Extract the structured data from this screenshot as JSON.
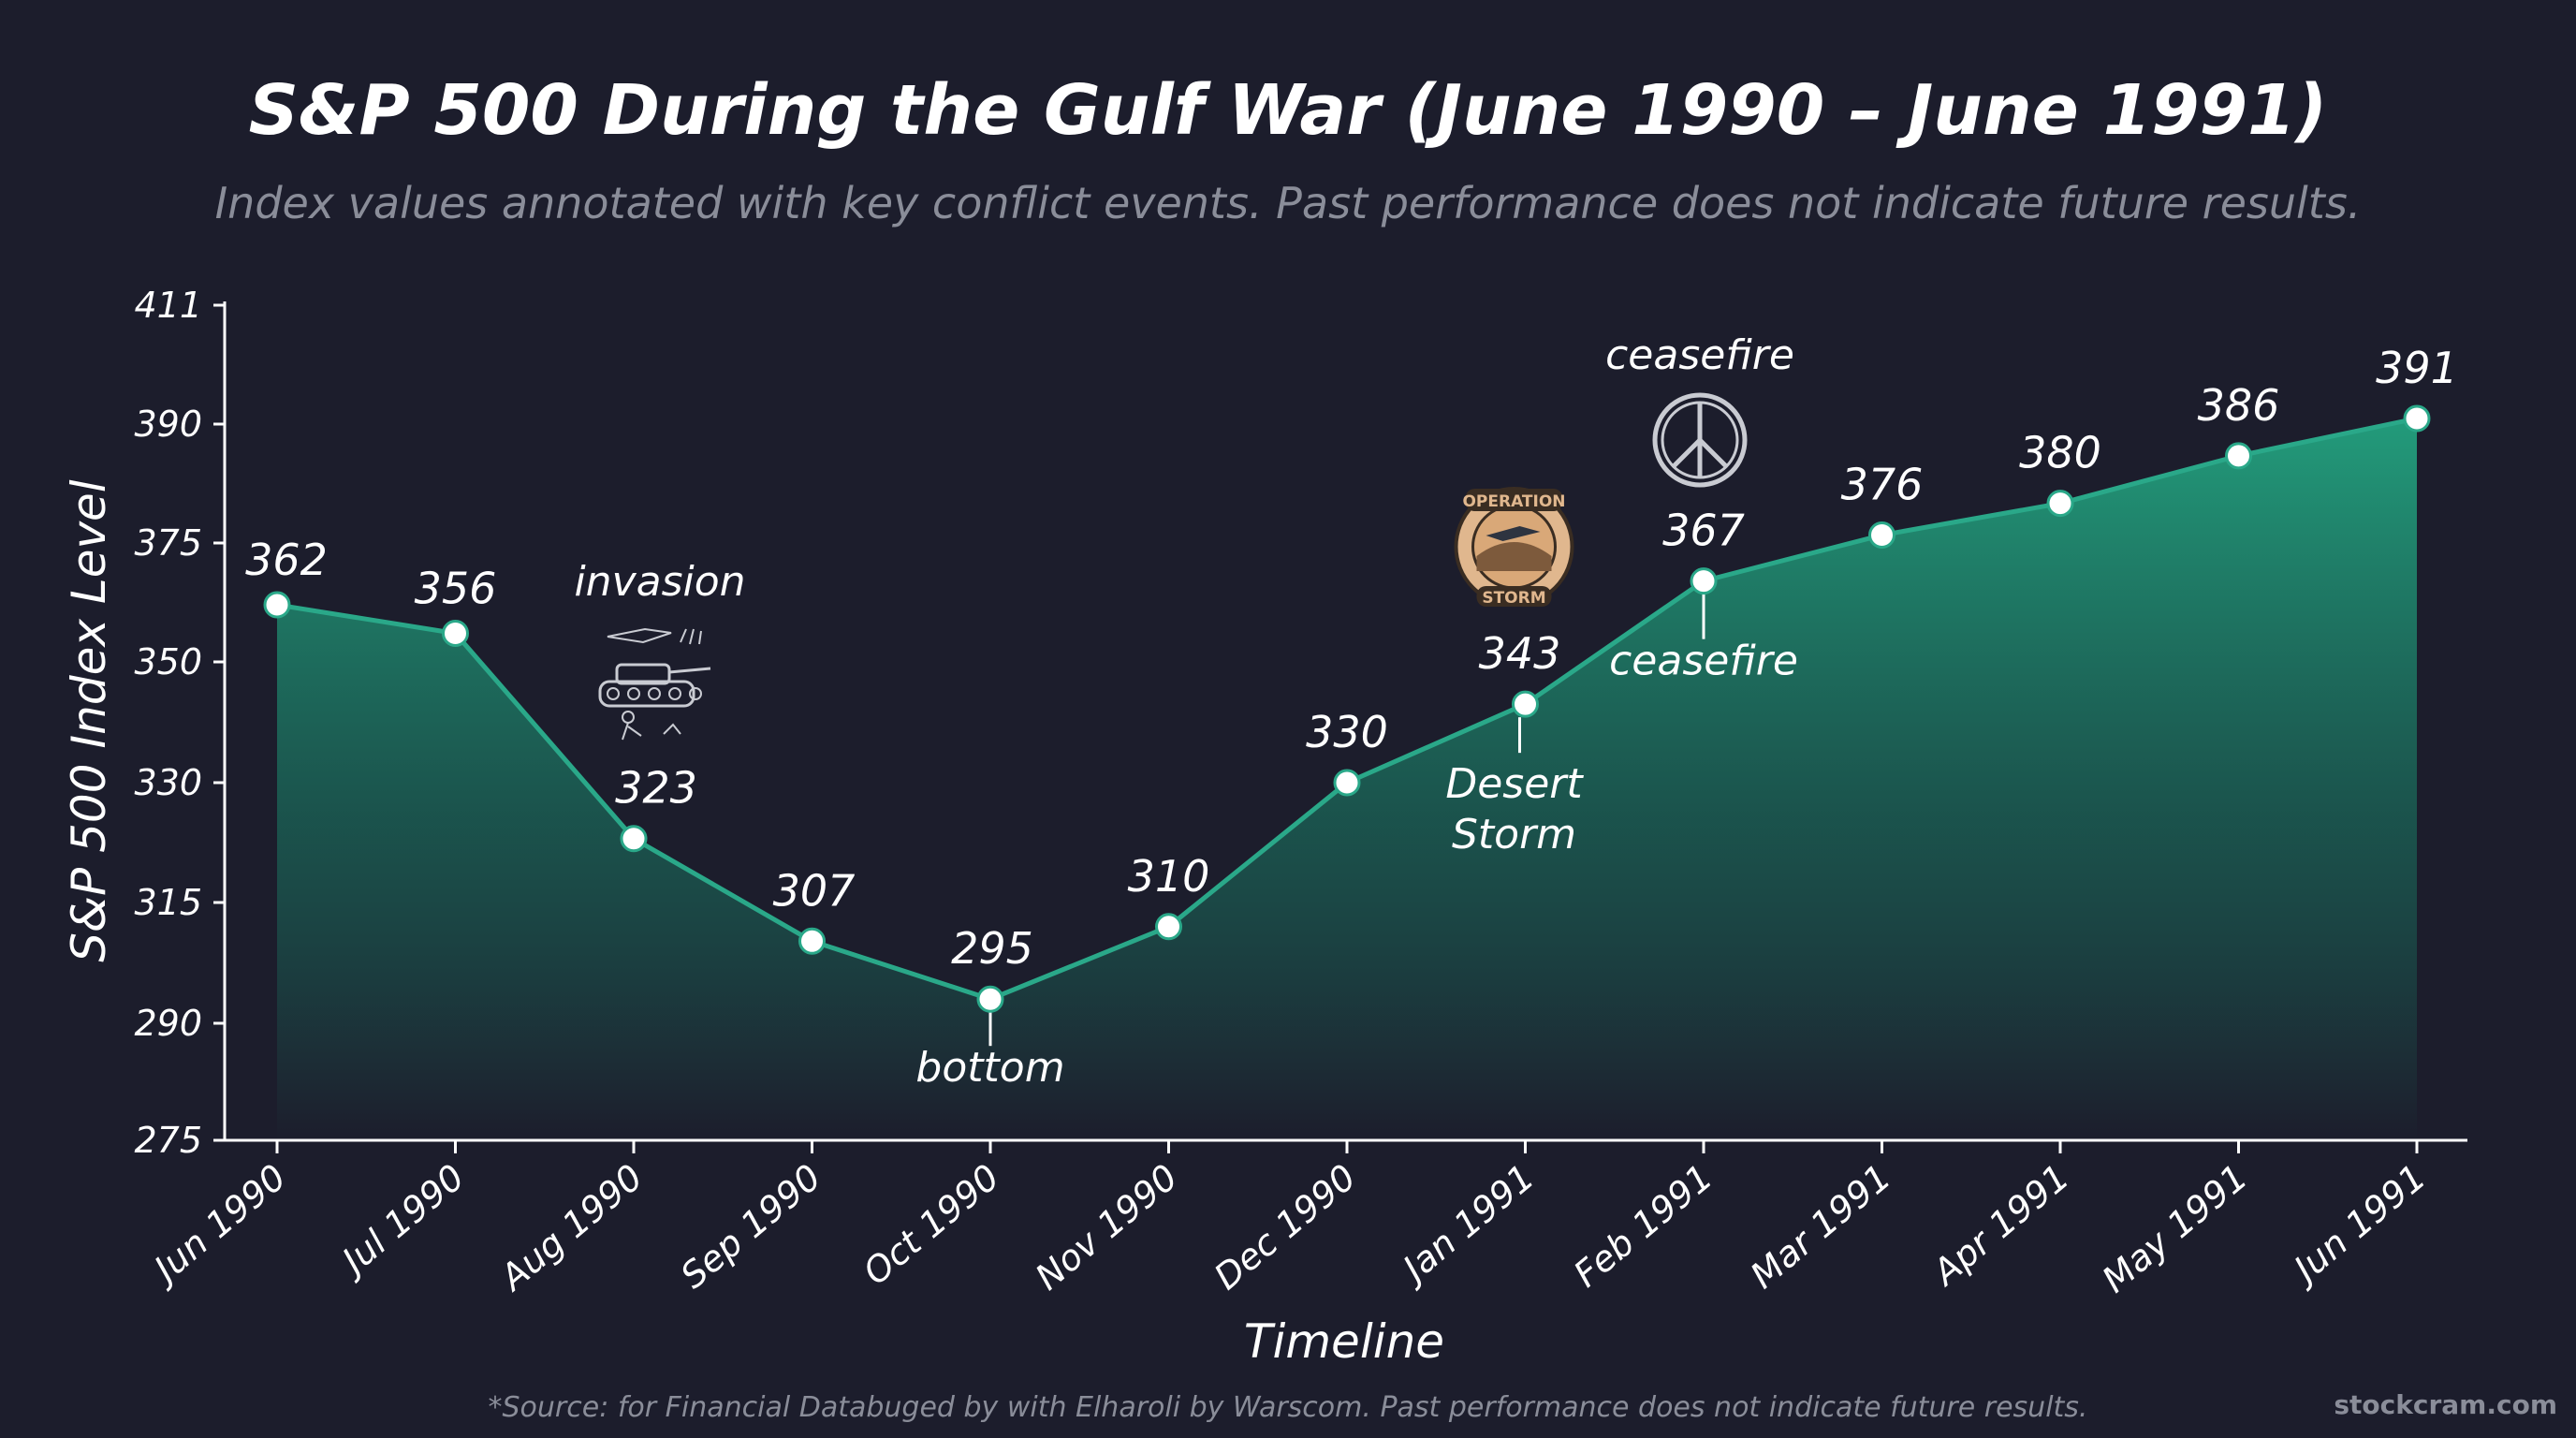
{
  "chart_data": {
    "type": "area",
    "title": "S&P 500 During the Gulf War (June 1990 – June 1991)",
    "subtitle": "Index values annotated with key conflict events. Past performance does not indicate future results.",
    "xlabel": "Timeline",
    "ylabel": "S&P 500 Index Level",
    "categories": [
      "Jun 1990",
      "Jul 1990",
      "Aug 1990",
      "Sep 1990",
      "Oct 1990",
      "Nov 1990",
      "Dec 1990",
      "Jan 1991",
      "Feb 1991",
      "Mar 1991",
      "Apr 1991",
      "May 1991",
      "Jun 1991"
    ],
    "values": [
      362,
      356,
      323,
      307,
      295,
      310,
      330,
      343,
      367,
      376,
      380,
      386,
      391
    ],
    "y_ticks": [
      275,
      290,
      315,
      330,
      350,
      375,
      390,
      411
    ],
    "ylim": [
      275,
      411
    ],
    "grid": false,
    "line_color": "#2aa889",
    "fill_color_top": "#23a27f",
    "fill_color_bottom": "#1c1d2c",
    "annotations": [
      {
        "category": "Aug 1990",
        "label": "invasion",
        "icon": "tank-soldier-icon"
      },
      {
        "category": "Oct 1990",
        "label": "bottom"
      },
      {
        "category": "Jan 1991",
        "label": "Desert Storm",
        "icon": "operation-storm-badge-icon",
        "badge_top": "OPERATION",
        "badge_bottom": "STORM"
      },
      {
        "category": "Feb 1991",
        "label": "ceasefire"
      },
      {
        "category": "Feb 1991",
        "label": "ceasefire",
        "icon": "peace-sign-icon"
      }
    ],
    "footnote": "*Source: for Financial Databuged by with Elharoli by Warscom. Past performance does not indicate future results.",
    "watermark": "stockcram.com"
  }
}
